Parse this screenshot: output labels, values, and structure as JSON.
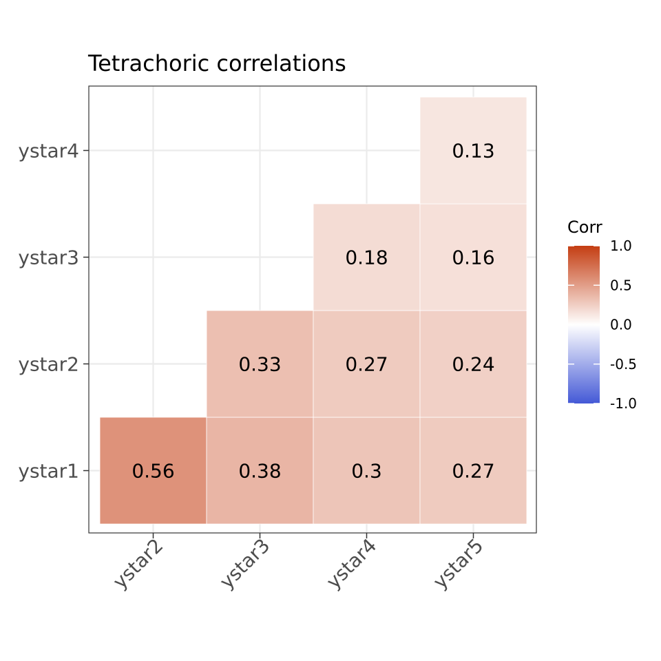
{
  "chart_data": {
    "type": "heatmap",
    "title": "Tetrachoric correlations",
    "xlabel": "",
    "ylabel": "",
    "x_categories": [
      "ystar2",
      "ystar3",
      "ystar4",
      "ystar5"
    ],
    "y_categories": [
      "ystar1",
      "ystar2",
      "ystar3",
      "ystar4"
    ],
    "cells": [
      {
        "x": "ystar2",
        "y": "ystar1",
        "value": 0.56,
        "label": "0.56"
      },
      {
        "x": "ystar3",
        "y": "ystar1",
        "value": 0.38,
        "label": "0.38"
      },
      {
        "x": "ystar4",
        "y": "ystar1",
        "value": 0.3,
        "label": "0.3"
      },
      {
        "x": "ystar5",
        "y": "ystar1",
        "value": 0.27,
        "label": "0.27"
      },
      {
        "x": "ystar3",
        "y": "ystar2",
        "value": 0.33,
        "label": "0.33"
      },
      {
        "x": "ystar4",
        "y": "ystar2",
        "value": 0.27,
        "label": "0.27"
      },
      {
        "x": "ystar5",
        "y": "ystar2",
        "value": 0.24,
        "label": "0.24"
      },
      {
        "x": "ystar4",
        "y": "ystar3",
        "value": 0.18,
        "label": "0.18"
      },
      {
        "x": "ystar5",
        "y": "ystar3",
        "value": 0.16,
        "label": "0.16"
      },
      {
        "x": "ystar5",
        "y": "ystar4",
        "value": 0.13,
        "label": "0.13"
      }
    ],
    "legend": {
      "title": "Corr",
      "position": "right",
      "ticks": [
        1.0,
        0.5,
        0.0,
        -0.5,
        -1.0
      ],
      "tick_labels": [
        "1.0",
        "0.5",
        "0.0",
        "-0.5",
        "-1.0"
      ],
      "limits": [
        -1,
        1
      ]
    },
    "colors": {
      "high": "#c43d12",
      "mid": "#ffffff",
      "low": "#4459d6",
      "grid": "#ebebeb",
      "panel_border": "#333333"
    },
    "grid": true
  }
}
